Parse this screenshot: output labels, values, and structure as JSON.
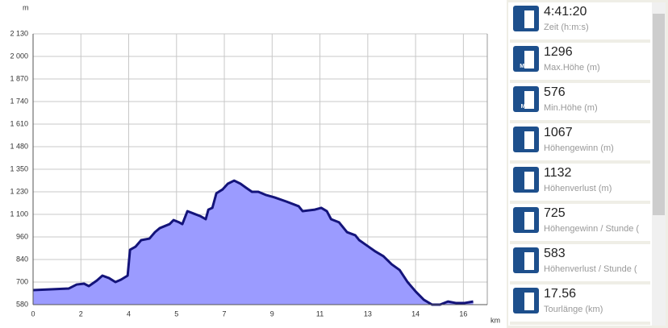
{
  "chart_data": {
    "type": "area",
    "y_unit": "m",
    "x_unit": "km",
    "x": [
      0,
      1.34,
      1.64,
      1.92,
      2.1,
      2.4,
      2.61,
      2.86,
      3.1,
      3.31,
      3.56,
      3.65,
      3.86,
      4.07,
      4.38,
      4.59,
      4.77,
      5.14,
      5.29,
      5.5,
      5.62,
      5.81,
      6.05,
      6.29,
      6.5,
      6.6,
      6.75,
      6.9,
      7.14,
      7.33,
      7.57,
      7.81,
      8.02,
      8.24,
      8.48,
      8.78,
      9.09,
      9.54,
      10.0,
      10.15,
      10.61,
      10.85,
      11.06,
      11.22,
      11.52,
      11.82,
      12.13,
      12.28,
      12.58,
      12.89,
      13.19,
      13.5,
      13.8,
      14.1,
      14.41,
      14.71,
      15.02,
      15.32,
      15.62,
      15.93,
      16.23,
      16.57
    ],
    "values": [
      663,
      672,
      695,
      700,
      686,
      718,
      746,
      732,
      709,
      723,
      746,
      894,
      912,
      949,
      958,
      995,
      1018,
      1041,
      1064,
      1051,
      1041,
      1115,
      1101,
      1087,
      1069,
      1124,
      1134,
      1217,
      1240,
      1272,
      1290,
      1272,
      1249,
      1226,
      1226,
      1207,
      1194,
      1170,
      1143,
      1115,
      1124,
      1134,
      1115,
      1069,
      1051,
      995,
      977,
      949,
      917,
      884,
      857,
      811,
      778,
      709,
      654,
      608,
      580,
      580,
      598,
      589,
      589,
      598
    ],
    "line_color": "#14147a",
    "fill_color": "#9b9bff",
    "xlim": [
      0,
      17.1
    ],
    "xticks": [
      0,
      {
        "value": 1.8,
        "label": "2"
      },
      {
        "value": 3.6,
        "label": "4"
      },
      {
        "value": 5.4,
        "label": "5"
      },
      {
        "value": 7.2,
        "label": "7"
      },
      9,
      {
        "value": 10.8,
        "label": "11"
      },
      {
        "value": 12.6,
        "label": "13"
      },
      {
        "value": 14.4,
        "label": "14"
      },
      {
        "value": 16.2,
        "label": "16"
      }
    ],
    "ylim": [
      580,
      2130
    ],
    "yticks": [
      580,
      {
        "value": 709.2,
        "label": "700"
      },
      {
        "value": 838.3,
        "label": "840"
      },
      {
        "value": 967.5,
        "label": "960"
      },
      {
        "value": 1096.7,
        "label": "1 100"
      },
      {
        "value": 1225.8,
        "label": "1 230"
      },
      {
        "value": 1355,
        "label": "1 350"
      },
      {
        "value": 1484.2,
        "label": "1 480"
      },
      {
        "value": 1613.3,
        "label": "1 610"
      },
      {
        "value": 1742.5,
        "label": "1 740"
      },
      {
        "value": 1871.7,
        "label": "1 870"
      },
      {
        "value": 2000.8,
        "label": "2 000"
      },
      {
        "value": 2130,
        "label": "2 130"
      }
    ],
    "grid": true
  },
  "stats": [
    {
      "value": "4:41:20",
      "label": "Zeit (h:m:s)"
    },
    {
      "value": "1296",
      "label": "Max.Höhe (m)",
      "badge": "MAX"
    },
    {
      "value": "576",
      "label": "Min.Höhe (m)",
      "badge": "MIN"
    },
    {
      "value": "1067",
      "label": "Höhengewinn (m)"
    },
    {
      "value": "1132",
      "label": "Höhenverlust (m)"
    },
    {
      "value": "725",
      "label": "Höhengewinn  / Stunde ("
    },
    {
      "value": "583",
      "label": "Höhenverlust / Stunde ("
    },
    {
      "value": "17.56",
      "label": "Tourlänge (km)"
    }
  ]
}
